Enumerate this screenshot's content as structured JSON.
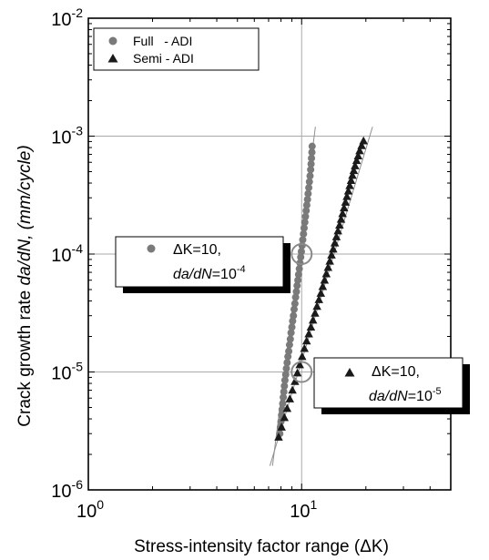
{
  "chart_data": {
    "type": "scatter",
    "title": "",
    "xlabel": "Stress-intensity factor range (ΔK)",
    "ylabel": {
      "prefix": "Crack growth rate ",
      "italic": "da/dN",
      "suffix": ", (mm/cycle)"
    },
    "x_scale": "log",
    "y_scale": "log",
    "xlim": [
      1,
      50
    ],
    "ylim": [
      1e-06,
      0.01
    ],
    "x_ticks": [
      {
        "value": 1,
        "base": "10",
        "exp": "0"
      },
      {
        "value": 10,
        "base": "10",
        "exp": "1"
      }
    ],
    "y_ticks": [
      {
        "value": 1e-06,
        "base": "10",
        "exp": "-6"
      },
      {
        "value": 1e-05,
        "base": "10",
        "exp": "-5"
      },
      {
        "value": 0.0001,
        "base": "10",
        "exp": "-4"
      },
      {
        "value": 0.001,
        "base": "10",
        "exp": "-3"
      },
      {
        "value": 0.01,
        "base": "10",
        "exp": "-2"
      }
    ],
    "gridlines": {
      "x": [
        10
      ],
      "y": [
        1e-05,
        0.0001,
        0.001
      ]
    },
    "legend": {
      "position": "top-left",
      "entries": [
        {
          "label": "Full   - ADI",
          "marker": "circle"
        },
        {
          "label": "Semi - ADI",
          "marker": "triangle"
        }
      ]
    },
    "series": [
      {
        "name": "Full   - ADI",
        "marker": "circle",
        "color": "#7a7a7a",
        "fit_line": [
          [
            7.3,
            1.6e-06
          ],
          [
            11.6,
            0.0012
          ]
        ],
        "points": [
          [
            7.9,
            3e-06
          ],
          [
            7.95,
            3.4e-06
          ],
          [
            8.0,
            3.8e-06
          ],
          [
            8.05,
            4.3e-06
          ],
          [
            8.1,
            4.8e-06
          ],
          [
            8.15,
            5.4e-06
          ],
          [
            8.2,
            6.1e-06
          ],
          [
            8.25,
            6.8e-06
          ],
          [
            8.3,
            7.6e-06
          ],
          [
            8.35,
            8.5e-06
          ],
          [
            8.42,
            9.5e-06
          ],
          [
            8.48,
            1.07e-05
          ],
          [
            8.55,
            1.2e-05
          ],
          [
            8.62,
            1.35e-05
          ],
          [
            8.7,
            1.5e-05
          ],
          [
            8.77,
            1.7e-05
          ],
          [
            8.85,
            1.9e-05
          ],
          [
            8.92,
            2.15e-05
          ],
          [
            9.0,
            2.4e-05
          ],
          [
            9.07,
            2.7e-05
          ],
          [
            9.15,
            3e-05
          ],
          [
            9.22,
            3.4e-05
          ],
          [
            9.3,
            3.8e-05
          ],
          [
            9.37,
            4.3e-05
          ],
          [
            9.45,
            4.8e-05
          ],
          [
            9.52,
            5.4e-05
          ],
          [
            9.6,
            6e-05
          ],
          [
            9.67,
            6.7e-05
          ],
          [
            9.75,
            7.5e-05
          ],
          [
            9.82,
            8.4e-05
          ],
          [
            9.9,
            9.4e-05
          ],
          [
            9.97,
            0.000105
          ],
          [
            10.05,
            0.000118
          ],
          [
            10.12,
            0.000132
          ],
          [
            10.2,
            0.000148
          ],
          [
            10.27,
            0.000166
          ],
          [
            10.35,
            0.000186
          ],
          [
            10.42,
            0.000208
          ],
          [
            10.5,
            0.000233
          ],
          [
            10.57,
            0.00026
          ],
          [
            10.65,
            0.00029
          ],
          [
            10.72,
            0.000325
          ],
          [
            10.8,
            0.000365
          ],
          [
            10.87,
            0.00041
          ],
          [
            10.95,
            0.00046
          ],
          [
            11.02,
            0.00052
          ],
          [
            11.07,
            0.00058
          ],
          [
            11.12,
            0.00065
          ],
          [
            11.17,
            0.00073
          ],
          [
            11.2,
            0.00082
          ]
        ]
      },
      {
        "name": "Semi - ADI",
        "marker": "triangle",
        "color": "#1a1a1a",
        "fit_line": [
          [
            7.1,
            1.6e-06
          ],
          [
            21.5,
            0.0012
          ]
        ],
        "points": [
          [
            7.8,
            2.8e-06
          ],
          [
            8.05,
            3.4e-06
          ],
          [
            8.3,
            4.1e-06
          ],
          [
            8.55,
            4.9e-06
          ],
          [
            8.8,
            5.9e-06
          ],
          [
            9.05,
            7e-06
          ],
          [
            9.3,
            8.3e-06
          ],
          [
            9.55,
            9.8e-06
          ],
          [
            9.8,
            1.15e-05
          ],
          [
            10.05,
            1.35e-05
          ],
          [
            10.3,
            1.58e-05
          ],
          [
            10.55,
            1.83e-05
          ],
          [
            10.8,
            2.1e-05
          ],
          [
            11.05,
            2.4e-05
          ],
          [
            11.3,
            2.75e-05
          ],
          [
            11.55,
            3.15e-05
          ],
          [
            11.8,
            3.6e-05
          ],
          [
            12.05,
            4.1e-05
          ],
          [
            12.3,
            4.65e-05
          ],
          [
            12.55,
            5.3e-05
          ],
          [
            12.8,
            6e-05
          ],
          [
            13.05,
            6.8e-05
          ],
          [
            13.3,
            7.7e-05
          ],
          [
            13.55,
            8.7e-05
          ],
          [
            13.8,
            9.8e-05
          ],
          [
            14.05,
            0.00011
          ],
          [
            14.3,
            0.000124
          ],
          [
            14.55,
            0.00014
          ],
          [
            14.8,
            0.000157
          ],
          [
            15.05,
            0.000176
          ],
          [
            15.3,
            0.000197
          ],
          [
            15.55,
            0.00022
          ],
          [
            15.8,
            0.000246
          ],
          [
            16.05,
            0.000275
          ],
          [
            16.3,
            0.000307
          ],
          [
            16.55,
            0.000342
          ],
          [
            16.8,
            0.00038
          ],
          [
            17.05,
            0.00042
          ],
          [
            17.3,
            0.000465
          ],
          [
            17.55,
            0.00051
          ],
          [
            17.8,
            0.00056
          ],
          [
            18.1,
            0.00062
          ],
          [
            18.4,
            0.00068
          ],
          [
            18.7,
            0.00075
          ],
          [
            19.1,
            0.00083
          ],
          [
            19.5,
            0.00091
          ]
        ]
      }
    ],
    "annotations": [
      {
        "id": "full",
        "marker": "circle",
        "line1": "ΔK=10,",
        "var": "da/dN",
        "eq": "=10",
        "exp": "-4",
        "target": [
          10,
          0.0001
        ]
      },
      {
        "id": "semi",
        "marker": "triangle",
        "line1": "ΔK=10,",
        "var": "da/dN",
        "eq": "=10",
        "exp": "-5",
        "target": [
          10,
          1e-05
        ]
      }
    ]
  }
}
